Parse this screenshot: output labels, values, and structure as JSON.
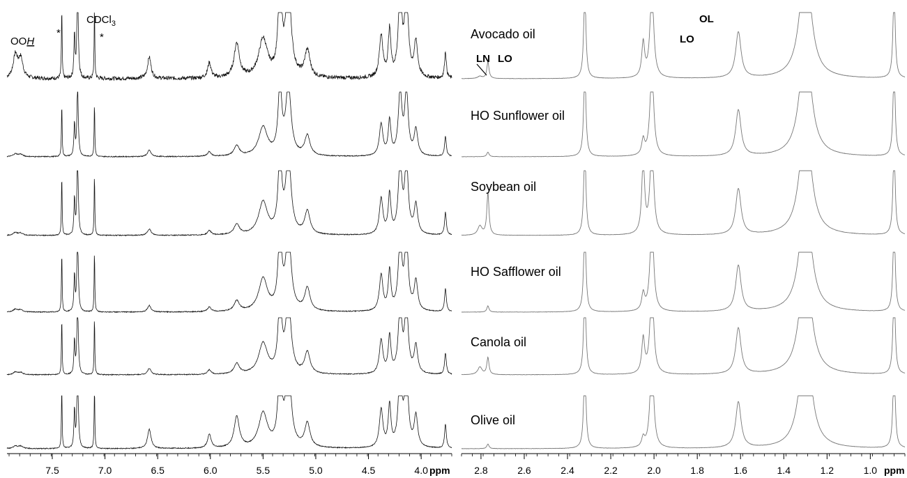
{
  "chart_data": [
    {
      "type": "line",
      "panel": "left",
      "xlabel": "ppm",
      "xlim": [
        7.93,
        3.71
      ],
      "x_reversed": true,
      "tick_labels": [
        "7.5",
        "7.0",
        "6.5",
        "6.0",
        "5.5",
        "5.0",
        "4.5",
        "4.0"
      ],
      "tick_values": [
        7.5,
        7.0,
        6.5,
        6.0,
        5.5,
        5.0,
        4.5,
        4.0
      ],
      "stack_order": [
        "Avocado oil",
        "HO Sunflower oil",
        "Soybean oil",
        "HO Safflower oil",
        "Canola oil",
        "Olive oil"
      ],
      "annotations": [
        {
          "text": "OOH",
          "italic_underlined_part": "H",
          "x": 7.87
        },
        {
          "text": "*",
          "x": 7.41
        },
        {
          "text": "*",
          "x": 7.1
        },
        {
          "text": "CDCl",
          "subscript": "3",
          "x": 7.26
        }
      ],
      "peaks": [
        {
          "x": 7.85,
          "height": 0.3,
          "width": 0.025
        },
        {
          "x": 7.8,
          "height": 0.25,
          "width": 0.025
        },
        {
          "x": 7.41,
          "height": 0.92,
          "width": 0.004
        },
        {
          "x": 7.29,
          "height": 0.55,
          "width": 0.006
        },
        {
          "x": 7.26,
          "height": 1.2,
          "width": 0.008
        },
        {
          "x": 7.1,
          "height": 0.92,
          "width": 0.004
        },
        {
          "x": 6.58,
          "height": 0.28,
          "width": 0.02
        },
        {
          "x": 6.01,
          "height": 0.2,
          "width": 0.02
        },
        {
          "x": 5.75,
          "height": 0.45,
          "width": 0.03
        },
        {
          "x": 5.5,
          "height": 0.5,
          "width": 0.05
        },
        {
          "x": 5.34,
          "height": 1.2,
          "width": 0.02
        },
        {
          "x": 5.26,
          "height": 1.2,
          "width": 0.03
        },
        {
          "x": 5.08,
          "height": 0.35,
          "width": 0.03
        },
        {
          "x": 4.38,
          "height": 0.55,
          "width": 0.02
        },
        {
          "x": 4.3,
          "height": 0.6,
          "width": 0.015
        },
        {
          "x": 4.2,
          "height": 1.1,
          "width": 0.02
        },
        {
          "x": 4.14,
          "height": 1.1,
          "width": 0.02
        },
        {
          "x": 4.05,
          "height": 0.45,
          "width": 0.02
        },
        {
          "x": 3.77,
          "height": 0.35,
          "width": 0.01
        }
      ]
    },
    {
      "type": "line",
      "panel": "right",
      "xlabel": "ppm",
      "xlim": [
        2.89,
        0.84
      ],
      "x_reversed": true,
      "tick_labels": [
        "2.8",
        "2.6",
        "2.4",
        "2.2",
        "2.0",
        "1.8",
        "1.6",
        "1.4",
        "1.2",
        "1.0"
      ],
      "tick_values": [
        2.8,
        2.6,
        2.4,
        2.2,
        2.0,
        1.8,
        1.6,
        1.4,
        1.2,
        1.0
      ],
      "annotations": [
        {
          "text": "LN",
          "x": 2.81
        },
        {
          "text": "LO",
          "x": 2.77
        },
        {
          "text": "LO",
          "x": 2.04
        },
        {
          "text": "OL",
          "x": 2.0
        }
      ],
      "series": [
        {
          "name": "Avocado oil",
          "peaks": {
            "LN": 0.03,
            "LO277": 0.22,
            "LO205": 0.45
          }
        },
        {
          "name": "HO Sunflower oil",
          "peaks": {
            "LN": 0.0,
            "LO277": 0.06,
            "LO205": 0.2
          }
        },
        {
          "name": "Soybean oil",
          "peaks": {
            "LN": 0.12,
            "LO277": 0.55,
            "LO205": 0.95
          }
        },
        {
          "name": "HO Safflower oil",
          "peaks": {
            "LN": 0.0,
            "LO277": 0.08,
            "LO205": 0.22
          }
        },
        {
          "name": "Canola oil",
          "peaks": {
            "LN": 0.1,
            "LO277": 0.22,
            "LO205": 0.45
          }
        },
        {
          "name": "Olive oil",
          "peaks": {
            "LN": 0.0,
            "LO277": 0.06,
            "LO205": 0.12
          }
        }
      ],
      "common_peaks": [
        {
          "x": 2.32,
          "height": 1.2,
          "width": 0.006
        },
        {
          "x": 2.01,
          "height": 1.2,
          "width": 0.01
        },
        {
          "x": 1.61,
          "height": 0.6,
          "width": 0.015
        },
        {
          "x": 1.3,
          "height": 1.6,
          "width": 0.03
        },
        {
          "x": 0.89,
          "height": 1.2,
          "width": 0.006
        }
      ]
    }
  ]
}
